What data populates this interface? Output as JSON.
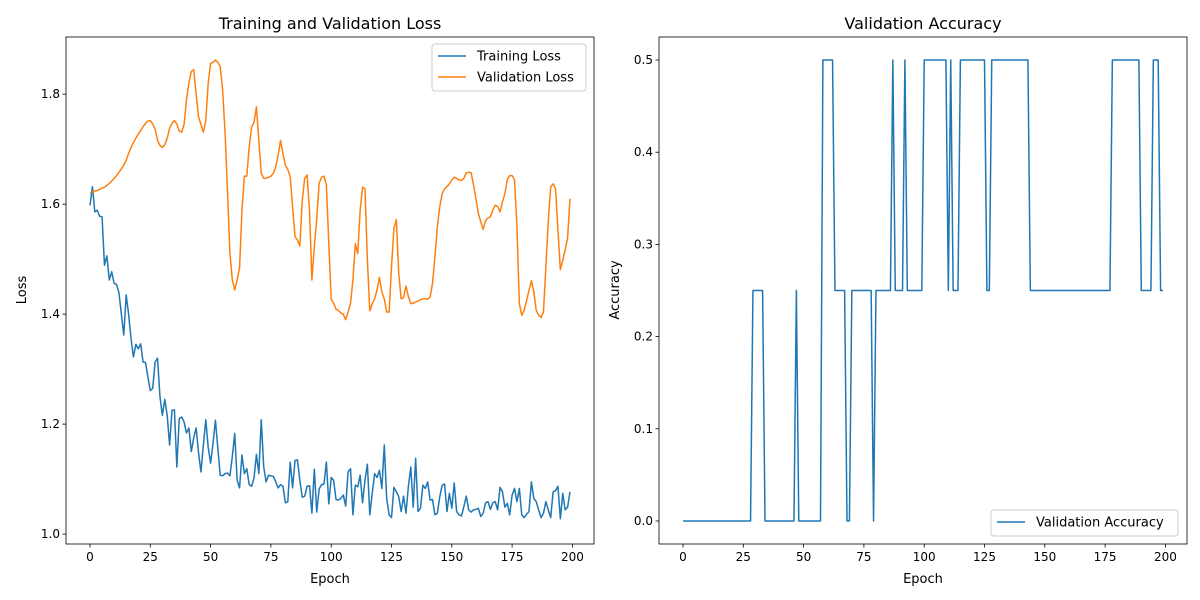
{
  "chart_data": [
    {
      "type": "line",
      "title": "Training and Validation Loss",
      "xlabel": "Epoch",
      "ylabel": "Loss",
      "xlim": [
        -9.95,
        208.95
      ],
      "ylim": [
        0.982,
        1.904
      ],
      "xticks": [
        0,
        25,
        50,
        75,
        100,
        125,
        150,
        175,
        200
      ],
      "yticks": [
        1.0,
        1.2,
        1.4,
        1.6,
        1.8
      ],
      "grid": false,
      "legend": "upper right",
      "series": [
        {
          "name": "Training Loss",
          "color": "#1f77b4",
          "values": [
            1.598,
            1.632,
            1.586,
            1.589,
            1.578,
            1.577,
            1.489,
            1.506,
            1.462,
            1.477,
            1.456,
            1.454,
            1.439,
            1.4,
            1.362,
            1.435,
            1.4,
            1.356,
            1.322,
            1.345,
            1.337,
            1.346,
            1.313,
            1.312,
            1.286,
            1.261,
            1.265,
            1.313,
            1.32,
            1.25,
            1.216,
            1.245,
            1.216,
            1.162,
            1.225,
            1.226,
            1.122,
            1.21,
            1.213,
            1.204,
            1.184,
            1.193,
            1.15,
            1.175,
            1.193,
            1.148,
            1.113,
            1.162,
            1.208,
            1.158,
            1.129,
            1.165,
            1.207,
            1.156,
            1.107,
            1.106,
            1.11,
            1.111,
            1.106,
            1.141,
            1.183,
            1.098,
            1.084,
            1.144,
            1.11,
            1.119,
            1.09,
            1.087,
            1.102,
            1.145,
            1.11,
            1.208,
            1.123,
            1.095,
            1.107,
            1.106,
            1.105,
            1.095,
            1.084,
            1.09,
            1.087,
            1.057,
            1.059,
            1.131,
            1.084,
            1.134,
            1.135,
            1.098,
            1.067,
            1.069,
            1.087,
            1.088,
            1.038,
            1.118,
            1.04,
            1.082,
            1.09,
            1.091,
            1.131,
            1.055,
            1.103,
            1.098,
            1.063,
            1.062,
            1.065,
            1.071,
            1.051,
            1.113,
            1.119,
            1.035,
            1.089,
            1.086,
            1.107,
            1.057,
            1.098,
            1.127,
            1.035,
            1.074,
            1.11,
            1.103,
            1.116,
            1.083,
            1.162,
            1.065,
            1.035,
            1.03,
            1.085,
            1.077,
            1.068,
            1.041,
            1.069,
            1.038,
            1.087,
            1.122,
            1.049,
            1.138,
            1.041,
            1.047,
            1.089,
            1.083,
            1.095,
            1.062,
            1.063,
            1.035,
            1.038,
            1.068,
            1.089,
            1.091,
            1.041,
            1.074,
            1.047,
            1.093,
            1.041,
            1.035,
            1.033,
            1.05,
            1.069,
            1.044,
            1.04,
            1.044,
            1.045,
            1.047,
            1.032,
            1.038,
            1.057,
            1.059,
            1.045,
            1.057,
            1.059,
            1.044,
            1.085,
            1.077,
            1.049,
            1.056,
            1.035,
            1.071,
            1.083,
            1.059,
            1.083,
            1.035,
            1.03,
            1.036,
            1.041,
            1.095,
            1.065,
            1.059,
            1.044,
            1.03,
            1.038,
            1.059,
            1.044,
            1.03,
            1.077,
            1.079,
            1.087,
            1.028,
            1.074,
            1.044,
            1.049,
            1.077
          ]
        },
        {
          "name": "Validation Loss",
          "color": "#ff7f0e",
          "values": [
            1.621,
            1.622,
            1.624,
            1.625,
            1.627,
            1.629,
            1.631,
            1.634,
            1.638,
            1.642,
            1.647,
            1.652,
            1.658,
            1.664,
            1.671,
            1.68,
            1.692,
            1.703,
            1.712,
            1.72,
            1.727,
            1.734,
            1.741,
            1.747,
            1.751,
            1.752,
            1.746,
            1.736,
            1.716,
            1.707,
            1.703,
            1.708,
            1.72,
            1.738,
            1.747,
            1.752,
            1.746,
            1.733,
            1.731,
            1.745,
            1.79,
            1.82,
            1.841,
            1.845,
            1.8,
            1.759,
            1.745,
            1.731,
            1.752,
            1.82,
            1.856,
            1.858,
            1.862,
            1.858,
            1.85,
            1.807,
            1.729,
            1.625,
            1.511,
            1.462,
            1.444,
            1.462,
            1.484,
            1.589,
            1.651,
            1.651,
            1.704,
            1.74,
            1.749,
            1.777,
            1.716,
            1.656,
            1.647,
            1.647,
            1.649,
            1.651,
            1.656,
            1.668,
            1.689,
            1.716,
            1.692,
            1.671,
            1.663,
            1.65,
            1.595,
            1.541,
            1.535,
            1.524,
            1.607,
            1.647,
            1.653,
            1.589,
            1.462,
            1.522,
            1.574,
            1.638,
            1.649,
            1.651,
            1.635,
            1.529,
            1.427,
            1.42,
            1.409,
            1.407,
            1.402,
            1.4,
            1.39,
            1.404,
            1.419,
            1.462,
            1.528,
            1.51,
            1.589,
            1.631,
            1.628,
            1.498,
            1.406,
            1.419,
            1.428,
            1.444,
            1.467,
            1.44,
            1.428,
            1.404,
            1.404,
            1.486,
            1.556,
            1.572,
            1.474,
            1.428,
            1.43,
            1.451,
            1.432,
            1.419,
            1.42,
            1.422,
            1.424,
            1.426,
            1.428,
            1.428,
            1.427,
            1.431,
            1.456,
            1.504,
            1.559,
            1.595,
            1.619,
            1.628,
            1.632,
            1.637,
            1.644,
            1.649,
            1.647,
            1.644,
            1.643,
            1.647,
            1.657,
            1.658,
            1.657,
            1.635,
            1.61,
            1.583,
            1.568,
            1.554,
            1.57,
            1.575,
            1.577,
            1.589,
            1.598,
            1.596,
            1.586,
            1.604,
            1.619,
            1.645,
            1.652,
            1.652,
            1.644,
            1.559,
            1.419,
            1.398,
            1.407,
            1.425,
            1.443,
            1.461,
            1.44,
            1.407,
            1.398,
            1.394,
            1.404,
            1.486,
            1.57,
            1.631,
            1.637,
            1.628,
            1.553,
            1.481,
            1.498,
            1.517,
            1.539,
            1.61
          ]
        }
      ]
    },
    {
      "type": "line",
      "title": "Validation Accuracy",
      "xlabel": "Epoch",
      "ylabel": "Accuracy",
      "xlim": [
        -9.95,
        208.95
      ],
      "ylim": [
        -0.025,
        0.525
      ],
      "xticks": [
        0,
        25,
        50,
        75,
        100,
        125,
        150,
        175,
        200
      ],
      "yticks": [
        0.0,
        0.1,
        0.2,
        0.3,
        0.4,
        0.5
      ],
      "grid": false,
      "legend": "lower right",
      "series": [
        {
          "name": "Validation Accuracy",
          "color": "#1f77b4",
          "values": [
            0,
            0,
            0,
            0,
            0,
            0,
            0,
            0,
            0,
            0,
            0,
            0,
            0,
            0,
            0,
            0,
            0,
            0,
            0,
            0,
            0,
            0,
            0,
            0,
            0,
            0,
            0,
            0,
            0,
            0.25,
            0.25,
            0.25,
            0.25,
            0.25,
            0,
            0,
            0,
            0,
            0,
            0,
            0,
            0,
            0,
            0,
            0,
            0,
            0,
            0.25,
            0,
            0,
            0,
            0,
            0,
            0,
            0,
            0,
            0,
            0,
            0.5,
            0.5,
            0.5,
            0.5,
            0.5,
            0.25,
            0.25,
            0.25,
            0.25,
            0.25,
            0,
            0,
            0.25,
            0.25,
            0.25,
            0.25,
            0.25,
            0.25,
            0.25,
            0.25,
            0.25,
            0,
            0.25,
            0.25,
            0.25,
            0.25,
            0.25,
            0.25,
            0.25,
            0.5,
            0.25,
            0.25,
            0.25,
            0.25,
            0.5,
            0.25,
            0.25,
            0.25,
            0.25,
            0.25,
            0.25,
            0.25,
            0.5,
            0.5,
            0.5,
            0.5,
            0.5,
            0.5,
            0.5,
            0.5,
            0.5,
            0.5,
            0.25,
            0.5,
            0.25,
            0.25,
            0.25,
            0.5,
            0.5,
            0.5,
            0.5,
            0.5,
            0.5,
            0.5,
            0.5,
            0.5,
            0.5,
            0.5,
            0.25,
            0.25,
            0.5,
            0.5,
            0.5,
            0.5,
            0.5,
            0.5,
            0.5,
            0.5,
            0.5,
            0.5,
            0.5,
            0.5,
            0.5,
            0.5,
            0.5,
            0.5,
            0.25,
            0.25,
            0.25,
            0.25,
            0.25,
            0.25,
            0.25,
            0.25,
            0.25,
            0.25,
            0.25,
            0.25,
            0.25,
            0.25,
            0.25,
            0.25,
            0.25,
            0.25,
            0.25,
            0.25,
            0.25,
            0.25,
            0.25,
            0.25,
            0.25,
            0.25,
            0.25,
            0.25,
            0.25,
            0.25,
            0.25,
            0.25,
            0.25,
            0.25,
            0.5,
            0.5,
            0.5,
            0.5,
            0.5,
            0.5,
            0.5,
            0.5,
            0.5,
            0.5,
            0.5,
            0.5,
            0.25,
            0.25,
            0.25,
            0.25,
            0.25,
            0.5,
            0.5,
            0.5,
            0.25,
            0.25
          ]
        }
      ]
    }
  ]
}
